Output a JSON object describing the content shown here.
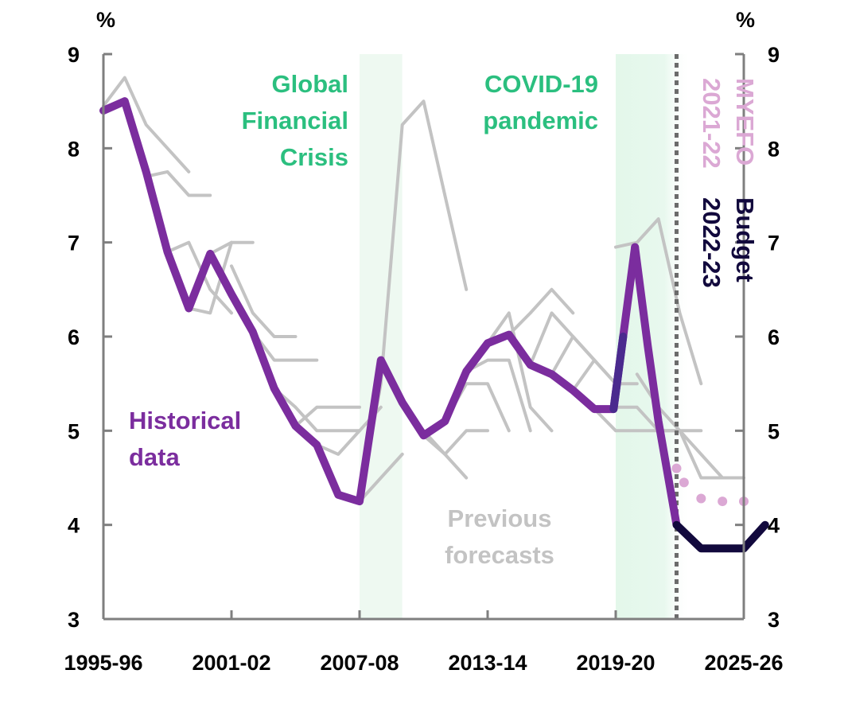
{
  "chart_data": {
    "type": "line",
    "y_unit_left": "%",
    "y_unit_right": "%",
    "ylim": [
      3,
      9
    ],
    "y_ticks": [
      3,
      4,
      5,
      6,
      7,
      8,
      9
    ],
    "x_tick_labels": [
      "1995-96",
      "2001-02",
      "2007-08",
      "2013-14",
      "2019-20",
      "2025-26"
    ],
    "x_tick_years": [
      1995,
      2001,
      2007,
      2013,
      2019,
      2025
    ],
    "grid": false,
    "shaded_periods": [
      {
        "label_lines": [
          "Global",
          "Financial",
          "Crisis"
        ],
        "from": 2007,
        "to": 2009
      },
      {
        "label_lines": [
          "COVID-19",
          "pandemic"
        ],
        "from": 2019,
        "to": 2022.5
      }
    ],
    "budget_marker_year": 2021.85,
    "historical": {
      "label_lines": [
        "Historical",
        "data"
      ],
      "color": "#7b2d9e",
      "x": [
        1995,
        1996,
        1997,
        1998,
        1999,
        2000,
        2001,
        2002,
        2003,
        2004,
        2005,
        2006,
        2007,
        2008,
        2009,
        2010,
        2011,
        2012,
        2013,
        2014,
        2015,
        2016,
        2017,
        2018,
        2018.9,
        2019.9
      ],
      "y": [
        8.4,
        8.5,
        7.75,
        6.9,
        6.3,
        6.88,
        6.45,
        6.05,
        5.45,
        5.05,
        4.85,
        4.32,
        4.25,
        5.75,
        5.3,
        4.95,
        5.1,
        5.63,
        5.93,
        6.02,
        5.7,
        5.6,
        5.43,
        5.23,
        5.23,
        6.95
      ]
    },
    "historical_tail": {
      "color": "#7b2d9e",
      "x": [
        2019.9,
        2020.5,
        2021.0,
        2021.85
      ],
      "y": [
        6.95,
        5.9,
        5.1,
        4.0
      ]
    },
    "budget_2022_23": {
      "label_lines": [
        "2022-23",
        "Budget"
      ],
      "color": "#12093d",
      "x": [
        2021.85,
        2023,
        2024,
        2025,
        2026
      ],
      "y": [
        4.0,
        3.75,
        3.75,
        3.75,
        4.0
      ]
    },
    "myefo_2021_22": {
      "label_lines": [
        "2021-22",
        "MYEFO"
      ],
      "color": "#dba8d4",
      "x": [
        2021.85,
        2022.2,
        2023,
        2024,
        2025
      ],
      "y": [
        4.6,
        4.45,
        4.28,
        4.25,
        4.25
      ]
    },
    "previous_forecasts": {
      "label_lines": [
        "Previous",
        "forecasts"
      ],
      "color": "#c3c3c3",
      "lines": [
        {
          "x": [
            1995,
            1996,
            1997,
            1998,
            1999
          ],
          "y": [
            8.45,
            8.75,
            8.25,
            8.0,
            7.75
          ]
        },
        {
          "x": [
            1996,
            1997,
            1998,
            1999,
            2000
          ],
          "y": [
            8.45,
            7.7,
            7.75,
            7.5,
            7.5
          ]
        },
        {
          "x": [
            1998,
            1999,
            2000,
            2001
          ],
          "y": [
            6.9,
            7.0,
            6.5,
            6.25
          ]
        },
        {
          "x": [
            1999,
            2000,
            2001
          ],
          "y": [
            6.3,
            6.25,
            7.0
          ]
        },
        {
          "x": [
            2000,
            2001,
            2002
          ],
          "y": [
            6.88,
            7.0,
            7.0
          ]
        },
        {
          "x": [
            2001,
            2002,
            2003,
            2004
          ],
          "y": [
            6.75,
            6.25,
            6.0,
            6.0
          ]
        },
        {
          "x": [
            2002,
            2003,
            2004,
            2005
          ],
          "y": [
            6.05,
            5.75,
            5.75,
            5.75
          ]
        },
        {
          "x": [
            2003,
            2004,
            2005,
            2006,
            2007
          ],
          "y": [
            5.45,
            5.25,
            5.0,
            5.0,
            5.0
          ]
        },
        {
          "x": [
            2004,
            2005,
            2006,
            2007
          ],
          "y": [
            5.05,
            5.25,
            5.25,
            5.25
          ]
        },
        {
          "x": [
            2005,
            2006,
            2007,
            2008
          ],
          "y": [
            4.85,
            4.75,
            5.0,
            5.25
          ]
        },
        {
          "x": [
            2007,
            2008,
            2009
          ],
          "y": [
            4.25,
            4.5,
            4.75
          ]
        },
        {
          "x": [
            2007,
            2008,
            2009,
            2010,
            2011,
            2012
          ],
          "y": [
            4.25,
            5.5,
            8.25,
            8.5,
            7.5,
            6.5
          ]
        },
        {
          "x": [
            2009,
            2010,
            2011,
            2012
          ],
          "y": [
            5.3,
            5.0,
            4.75,
            4.5
          ]
        },
        {
          "x": [
            2010,
            2011,
            2012,
            2013
          ],
          "y": [
            4.95,
            4.75,
            5.0,
            5.0
          ]
        },
        {
          "x": [
            2011,
            2012,
            2013,
            2014
          ],
          "y": [
            5.1,
            5.5,
            5.5,
            5.0
          ]
        },
        {
          "x": [
            2012,
            2013,
            2014,
            2015
          ],
          "y": [
            5.63,
            5.75,
            5.75,
            5.0
          ]
        },
        {
          "x": [
            2013,
            2014,
            2015,
            2016
          ],
          "y": [
            5.93,
            6.25,
            5.25,
            5.0
          ]
        },
        {
          "x": [
            2014,
            2015,
            2016,
            2017
          ],
          "y": [
            6.02,
            6.25,
            6.5,
            6.25
          ]
        },
        {
          "x": [
            2015,
            2016,
            2017,
            2018
          ],
          "y": [
            5.7,
            6.25,
            6.0,
            5.75
          ]
        },
        {
          "x": [
            2016,
            2017,
            2018,
            2019
          ],
          "y": [
            5.6,
            6.0,
            5.75,
            5.5
          ]
        },
        {
          "x": [
            2017,
            2018,
            2019,
            2020
          ],
          "y": [
            5.43,
            5.75,
            5.5,
            5.5
          ]
        },
        {
          "x": [
            2017,
            2018,
            2019,
            2020,
            2021,
            2022,
            2023
          ],
          "y": [
            5.43,
            5.25,
            5.25,
            5.25,
            5.0,
            5.0,
            5.0
          ]
        },
        {
          "x": [
            2018,
            2019,
            2020,
            2021,
            2022,
            2023,
            2024
          ],
          "y": [
            5.23,
            5.0,
            5.0,
            5.0,
            5.0,
            4.5,
            4.5
          ]
        },
        {
          "x": [
            2019,
            2020,
            2021,
            2022,
            2023
          ],
          "y": [
            6.95,
            7.0,
            7.25,
            6.25,
            5.5
          ]
        },
        {
          "x": [
            2020,
            2021,
            2022,
            2023,
            2024,
            2025
          ],
          "y": [
            5.6,
            5.25,
            5.0,
            4.75,
            4.5,
            4.5
          ]
        }
      ]
    }
  }
}
